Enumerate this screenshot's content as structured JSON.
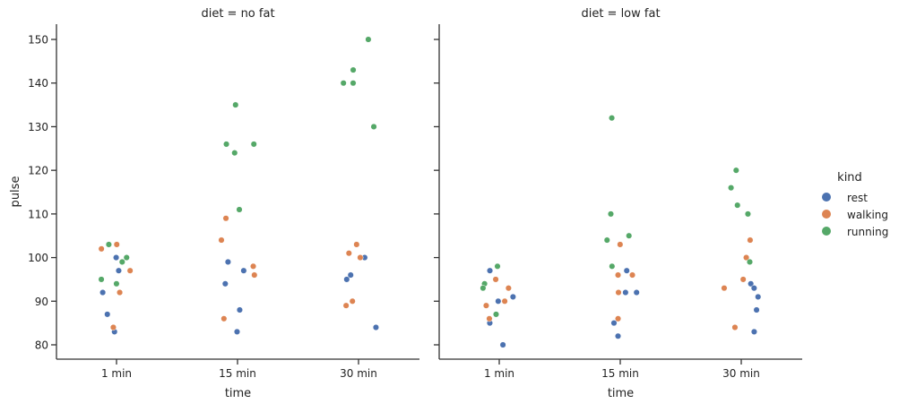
{
  "chart_data": {
    "type": "scatter",
    "subtype": "strip",
    "ylabel": "pulse",
    "xlabel": "time",
    "ylim": [
      77,
      153
    ],
    "yticks": [
      80,
      90,
      100,
      110,
      120,
      130,
      140,
      150
    ],
    "categories": [
      "1 min",
      "15 min",
      "30 min"
    ],
    "legend": {
      "title": "kind",
      "placement": "right",
      "entries": [
        "rest",
        "walking",
        "running"
      ]
    },
    "colors": {
      "rest": "#4c72b0",
      "walking": "#dd8452",
      "running": "#55a868"
    },
    "panels": [
      {
        "title": "diet = no fat",
        "data": {
          "1 min": {
            "rest": [
              100,
              97,
              92,
              87,
              83
            ],
            "walking": [
              103,
              102,
              97,
              92,
              84
            ],
            "running": [
              103,
              100,
              99,
              95,
              94
            ]
          },
          "15 min": {
            "rest": [
              99,
              97,
              94,
              88,
              83
            ],
            "walking": [
              109,
              104,
              98,
              96,
              86
            ],
            "running": [
              135,
              126,
              126,
              124,
              111
            ]
          },
          "30 min": {
            "rest": [
              100,
              96,
              95,
              84
            ],
            "walking": [
              103,
              101,
              100,
              90,
              89
            ],
            "running": [
              150,
              143,
              140,
              140,
              130
            ]
          }
        }
      },
      {
        "title": "diet = low fat",
        "data": {
          "1 min": {
            "rest": [
              97,
              91,
              90,
              85,
              80
            ],
            "walking": [
              95,
              93,
              90,
              89,
              86
            ],
            "running": [
              98,
              94,
              93,
              87
            ]
          },
          "15 min": {
            "rest": [
              97,
              92,
              92,
              85,
              82
            ],
            "walking": [
              103,
              96,
              96,
              92,
              86
            ],
            "running": [
              132,
              110,
              105,
              104,
              98
            ]
          },
          "30 min": {
            "rest": [
              94,
              93,
              91,
              88,
              83
            ],
            "walking": [
              104,
              100,
              95,
              93,
              84
            ],
            "running": [
              120,
              116,
              112,
              110,
              99
            ]
          }
        }
      }
    ]
  }
}
